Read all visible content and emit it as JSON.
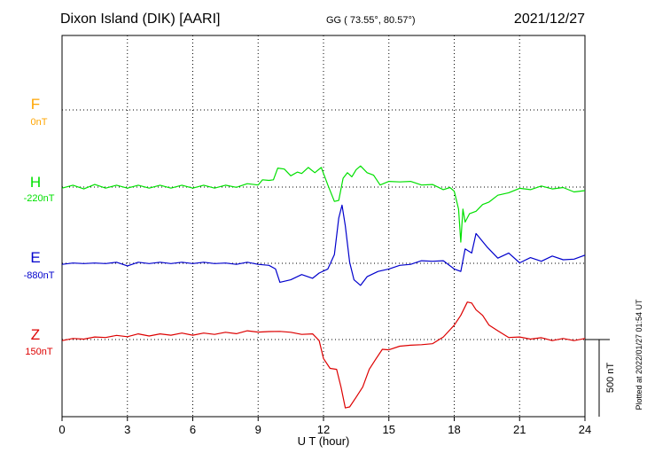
{
  "header": {
    "station": "Dixon Island (DIK)  [AARI]",
    "coords": "GG ( 73.55°,  80.57°)",
    "date": "2021/12/27"
  },
  "footer_note": "Plotted at 2022/01/27 01:54 UT",
  "scale_label": "500 nT",
  "colors": {
    "F": "#ffa500",
    "H": "#00e000",
    "E": "#0000cc",
    "Z": "#dd0000"
  },
  "chart_data": {
    "type": "line",
    "title": "Dixon Island (DIK)  [AARI]",
    "xlabel": "U T (hour)",
    "ylabel": "",
    "xlim": [
      0,
      24
    ],
    "xticks": [
      0,
      3,
      6,
      9,
      12,
      15,
      18,
      21,
      24
    ],
    "grid": true,
    "scale_bar_nT": 500,
    "channel_labels": [
      {
        "name": "F",
        "baseline": "0nT"
      },
      {
        "name": "H",
        "baseline": "-220nT"
      },
      {
        "name": "E",
        "baseline": "-880nT"
      },
      {
        "name": "Z",
        "baseline": "150nT"
      }
    ],
    "series": [
      {
        "name": "H",
        "baseline_nT": -220,
        "x": [
          0,
          0.5,
          1,
          1.5,
          2,
          2.5,
          3,
          3.5,
          4,
          4.5,
          5,
          5.5,
          6,
          6.5,
          7,
          7.5,
          8,
          8.5,
          9,
          9.2,
          9.5,
          9.7,
          9.9,
          10.2,
          10.5,
          10.8,
          11,
          11.3,
          11.6,
          11.9,
          12.2,
          12.5,
          12.7,
          12.9,
          13.1,
          13.3,
          13.5,
          13.7,
          14,
          14.3,
          14.6,
          15,
          15.5,
          16,
          16.5,
          17,
          17.5,
          17.8,
          18,
          18.2,
          18.3,
          18.4,
          18.5,
          18.7,
          19,
          19.3,
          19.6,
          20,
          20.5,
          21,
          21.5,
          22,
          22.5,
          23,
          23.5,
          24
        ],
        "values": [
          0,
          5,
          -5,
          10,
          0,
          5,
          0,
          5,
          0,
          5,
          0,
          5,
          0,
          5,
          0,
          5,
          5,
          15,
          20,
          40,
          50,
          40,
          130,
          110,
          80,
          90,
          95,
          120,
          100,
          120,
          20,
          -100,
          -80,
          50,
          100,
          60,
          120,
          130,
          100,
          70,
          20,
          30,
          40,
          30,
          20,
          10,
          -10,
          -10,
          -20,
          -150,
          -350,
          -150,
          -220,
          -180,
          -150,
          -120,
          -90,
          -60,
          -30,
          -15,
          -10,
          0,
          -5,
          -10,
          -25,
          -30
        ]
      },
      {
        "name": "E",
        "baseline_nT": -880,
        "x": [
          0,
          0.5,
          1,
          1.5,
          2,
          2.5,
          3,
          3.5,
          4,
          4.5,
          5,
          5.5,
          6,
          6.5,
          7,
          7.5,
          8,
          8.5,
          9,
          9.5,
          9.8,
          10,
          10.5,
          11,
          11.5,
          11.8,
          12.2,
          12.5,
          12.7,
          12.85,
          13,
          13.2,
          13.4,
          13.7,
          14,
          14.5,
          15,
          15.5,
          16,
          16.5,
          17,
          17.5,
          18,
          18.3,
          18.5,
          18.8,
          19,
          19.5,
          20,
          20.5,
          21,
          21.5,
          22,
          22.5,
          23,
          23.5,
          24
        ],
        "values": [
          0,
          -5,
          5,
          -5,
          5,
          0,
          -10,
          0,
          5,
          0,
          5,
          0,
          5,
          0,
          5,
          -5,
          0,
          0,
          0,
          -20,
          -30,
          -130,
          -100,
          -80,
          -90,
          -70,
          -30,
          50,
          300,
          370,
          250,
          0,
          -100,
          -150,
          -80,
          -60,
          -30,
          -20,
          0,
          10,
          20,
          10,
          -30,
          -60,
          100,
          60,
          200,
          100,
          40,
          60,
          10,
          30,
          20,
          40,
          30,
          20,
          60
        ]
      },
      {
        "name": "Z",
        "baseline_nT": 150,
        "x": [
          0,
          0.5,
          1,
          1.5,
          2,
          2.5,
          3,
          3.5,
          4,
          4.5,
          5,
          5.5,
          6,
          6.5,
          7,
          7.5,
          8,
          8.5,
          9,
          9.5,
          10,
          10.5,
          11,
          11.5,
          11.8,
          12,
          12.3,
          12.6,
          12.8,
          13,
          13.2,
          13.5,
          13.8,
          14.1,
          14.4,
          14.7,
          15,
          15.5,
          16,
          16.5,
          17,
          17.5,
          18,
          18.3,
          18.6,
          18.8,
          19,
          19.3,
          19.6,
          20,
          20.5,
          21,
          21.5,
          22,
          22.5,
          23,
          23.5,
          24
        ],
        "values": [
          0,
          0,
          10,
          10,
          20,
          20,
          25,
          30,
          30,
          30,
          35,
          35,
          35,
          35,
          40,
          40,
          45,
          50,
          55,
          45,
          60,
          40,
          40,
          30,
          0,
          -130,
          -180,
          -200,
          -300,
          -450,
          -430,
          -380,
          -300,
          -200,
          -120,
          -70,
          -60,
          -50,
          -30,
          -40,
          -20,
          10,
          100,
          150,
          250,
          230,
          200,
          150,
          100,
          50,
          20,
          10,
          10,
          5,
          0,
          0,
          0,
          0
        ]
      }
    ]
  }
}
